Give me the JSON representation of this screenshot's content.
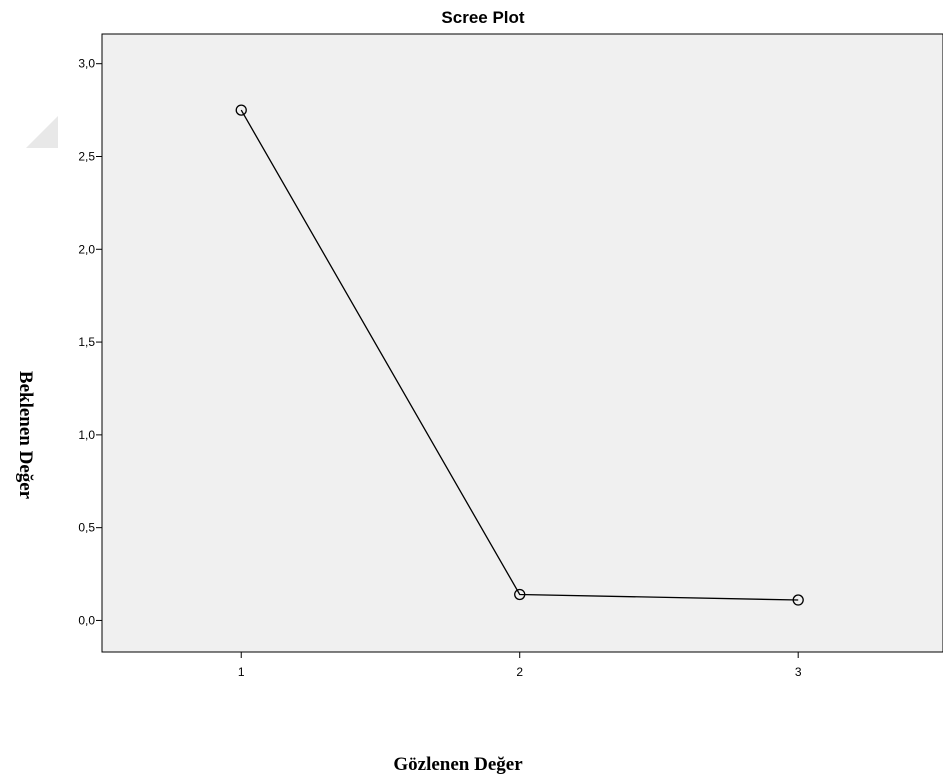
{
  "chart_data": {
    "type": "line",
    "title": "Scree Plot",
    "xlabel": "Gözlenen Değer",
    "ylabel": "Beklenen Değer",
    "x": [
      1,
      2,
      3
    ],
    "x_tick_labels": [
      "1",
      "2",
      "3"
    ],
    "series": [
      {
        "values": [
          2.75,
          0.14,
          0.11
        ]
      }
    ],
    "y_ticks": [
      0.0,
      0.5,
      1.0,
      1.5,
      2.0,
      2.5,
      3.0
    ],
    "y_tick_labels": [
      "0,0",
      "0,5",
      "1,0",
      "1,5",
      "2,0",
      "2,5",
      "3,0"
    ],
    "ylim": [
      -0.17,
      3.16
    ],
    "xlim": [
      0.5,
      3.52
    ],
    "grid": false,
    "marker": "open-circle",
    "colors": {
      "plot_background": "#f0f0f0",
      "line": "#000000"
    }
  }
}
